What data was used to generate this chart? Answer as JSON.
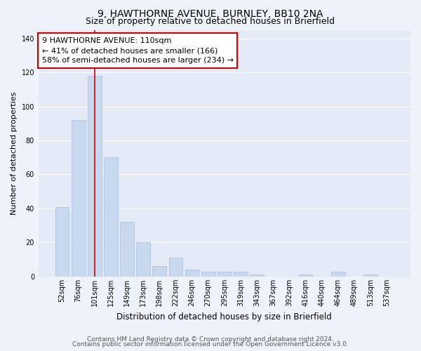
{
  "title1": "9, HAWTHORNE AVENUE, BURNLEY, BB10 2NA",
  "title2": "Size of property relative to detached houses in Brierfield",
  "xlabel": "Distribution of detached houses by size in Brierfield",
  "ylabel": "Number of detached properties",
  "categories": [
    "52sqm",
    "76sqm",
    "101sqm",
    "125sqm",
    "149sqm",
    "173sqm",
    "198sqm",
    "222sqm",
    "246sqm",
    "270sqm",
    "295sqm",
    "319sqm",
    "343sqm",
    "367sqm",
    "392sqm",
    "416sqm",
    "440sqm",
    "464sqm",
    "489sqm",
    "513sqm",
    "537sqm"
  ],
  "values": [
    41,
    92,
    118,
    70,
    32,
    20,
    6,
    11,
    4,
    3,
    3,
    3,
    1,
    0,
    0,
    1,
    0,
    3,
    0,
    1,
    0
  ],
  "bar_color": "#c8d8ee",
  "bar_edge_color": "#a8bedd",
  "redline_index": 2,
  "redline_color": "#cc0000",
  "annotation_text": "9 HAWTHORNE AVENUE: 110sqm\n← 41% of detached houses are smaller (166)\n58% of semi-detached houses are larger (234) →",
  "annotation_box_color": "#ffffff",
  "annotation_box_edge": "#cc0000",
  "ylim": [
    0,
    145
  ],
  "yticks": [
    0,
    20,
    40,
    60,
    80,
    100,
    120,
    140
  ],
  "footer1": "Contains HM Land Registry data © Crown copyright and database right 2024.",
  "footer2": "Contains public sector information licensed under the Open Government Licence v3.0.",
  "bg_color": "#eef2fa",
  "plot_bg_color": "#e4eaf6",
  "grid_color": "#ffffff",
  "title1_fontsize": 10,
  "title2_fontsize": 9,
  "xlabel_fontsize": 8.5,
  "ylabel_fontsize": 8,
  "tick_fontsize": 7,
  "footer_fontsize": 6.5,
  "annotation_fontsize": 8
}
